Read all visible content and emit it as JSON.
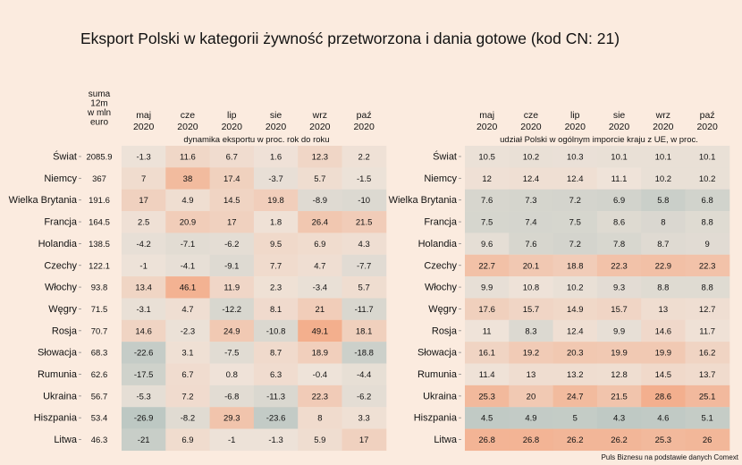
{
  "chart_data": {
    "type": "heatmap",
    "title": "Eksport Polski w kategorii żywność przetworzona i dania gotowe (kod CN: 21)",
    "source": "Puls Biznesu na podstawie danych Comext",
    "countries": [
      "Świat",
      "Niemcy",
      "Wielka Brytania",
      "Francja",
      "Holandia",
      "Czechy",
      "Włochy",
      "Węgry",
      "Rosja",
      "Słowacja",
      "Rumunia",
      "Ukraina",
      "Hiszpania",
      "Litwa"
    ],
    "months": [
      [
        "maj",
        "2020"
      ],
      [
        "cze",
        "2020"
      ],
      [
        "lip",
        "2020"
      ],
      [
        "sie",
        "2020"
      ],
      [
        "wrz",
        "2020"
      ],
      [
        "paź",
        "2020"
      ]
    ],
    "sum": {
      "header": [
        "suma",
        "12m",
        "w mln",
        "euro"
      ],
      "values": [
        "2085.9",
        "367",
        "191.6",
        "164.5",
        "138.5",
        "122.1",
        "93.8",
        "71.5",
        "70.7",
        "68.3",
        "62.6",
        "56.7",
        "53.4",
        "46.3"
      ]
    },
    "left_panel": {
      "subtitle": "dynamika eksportu w proc. rok do roku",
      "values": [
        [
          -1.3,
          11.6,
          6.7,
          1.6,
          12.3,
          2.2
        ],
        [
          7,
          38,
          17.4,
          -3.7,
          5.7,
          -1.5
        ],
        [
          17,
          4.9,
          14.5,
          19.8,
          -8.9,
          -10
        ],
        [
          2.5,
          20.9,
          17,
          1.8,
          26.4,
          21.5
        ],
        [
          -4.2,
          -7.1,
          -6.2,
          9.5,
          6.9,
          4.3
        ],
        [
          -1,
          -4.1,
          -9.1,
          7.7,
          4.7,
          -7.7
        ],
        [
          13.4,
          46.1,
          11.9,
          2.3,
          -3.4,
          5.7
        ],
        [
          -3.1,
          4.7,
          -12.2,
          8.1,
          21,
          -11.7
        ],
        [
          14.6,
          -2.3,
          24.9,
          -10.8,
          49.1,
          18.1
        ],
        [
          -22.6,
          3.1,
          -7.5,
          8.7,
          18.9,
          -18.8
        ],
        [
          -17.5,
          6.7,
          0.8,
          6.3,
          -0.4,
          -4.4
        ],
        [
          -5.3,
          7.2,
          -6.8,
          -11.3,
          22.3,
          -6.2
        ],
        [
          -26.9,
          -8.2,
          29.3,
          -23.6,
          8,
          3.3
        ],
        [
          -21,
          6.9,
          -1,
          -1.3,
          5.9,
          17
        ]
      ]
    },
    "right_panel": {
      "subtitle": "udział Polski w ogólnym imporcie kraju z UE, w proc.",
      "values": [
        [
          10.5,
          10.2,
          10.3,
          10.1,
          10.1,
          10.1
        ],
        [
          12,
          12.4,
          12.4,
          11.1,
          10.2,
          10.2
        ],
        [
          7.6,
          7.3,
          7.2,
          6.9,
          5.8,
          6.8
        ],
        [
          7.5,
          7.4,
          7.5,
          8.6,
          8,
          8.8
        ],
        [
          9.6,
          7.6,
          7.2,
          7.8,
          8.7,
          9
        ],
        [
          22.7,
          20.1,
          18.8,
          22.3,
          22.9,
          22.3
        ],
        [
          9.9,
          10.8,
          10.2,
          9.3,
          8.8,
          8.8
        ],
        [
          17.6,
          15.7,
          14.9,
          15.7,
          13,
          12.7
        ],
        [
          11,
          8.3,
          12.4,
          9.9,
          14.6,
          11.7
        ],
        [
          16.1,
          19.2,
          20.3,
          19.9,
          19.9,
          16.2
        ],
        [
          11.4,
          13,
          13.2,
          12.8,
          14.5,
          13.7
        ],
        [
          25.3,
          20,
          24.7,
          21.5,
          28.6,
          25.1
        ],
        [
          4.5,
          4.9,
          5,
          4.3,
          4.6,
          5.1
        ],
        [
          26.8,
          26.8,
          26.2,
          26.2,
          25.3,
          26
        ]
      ]
    },
    "colors": {
      "background": "#fbebdf",
      "low": "#bdc8c3",
      "mid": "#efe3d9",
      "high": "#f3ae8c"
    }
  }
}
